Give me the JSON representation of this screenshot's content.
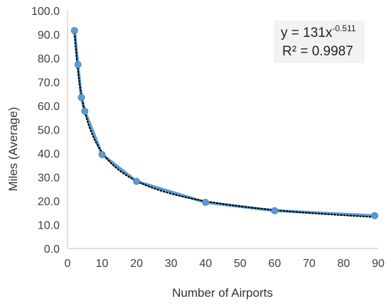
{
  "chart_data": {
    "type": "scatter",
    "xlabel": "Number of Airports",
    "ylabel": "Miles (Average)",
    "xlim": [
      0,
      90
    ],
    "ylim": [
      0,
      100
    ],
    "x_ticks": [
      "0",
      "10",
      "20",
      "30",
      "40",
      "50",
      "60",
      "70",
      "80",
      "90"
    ],
    "y_ticks": [
      "0.0",
      "10.0",
      "20.0",
      "30.0",
      "40.0",
      "50.0",
      "60.0",
      "70.0",
      "80.0",
      "90.0",
      "100.0"
    ],
    "grid": false,
    "series": [
      {
        "x": [
          2,
          3,
          4,
          5,
          10,
          20,
          40,
          60,
          89
        ],
        "y": [
          91.6,
          77.3,
          63.5,
          57.7,
          39.5,
          28.2,
          19.4,
          15.9,
          13.8
        ],
        "marker": "circle",
        "line": "solid",
        "color": "#5b9bd5"
      }
    ],
    "trendline": {
      "type": "power",
      "coefficient": 131,
      "exponent": -0.511,
      "style": "dotted",
      "color": "#000000"
    },
    "annotation": {
      "equation_prefix": "y = 131x",
      "equation_exponent": "-0.511",
      "r_squared": "R² = 0.9987"
    }
  }
}
